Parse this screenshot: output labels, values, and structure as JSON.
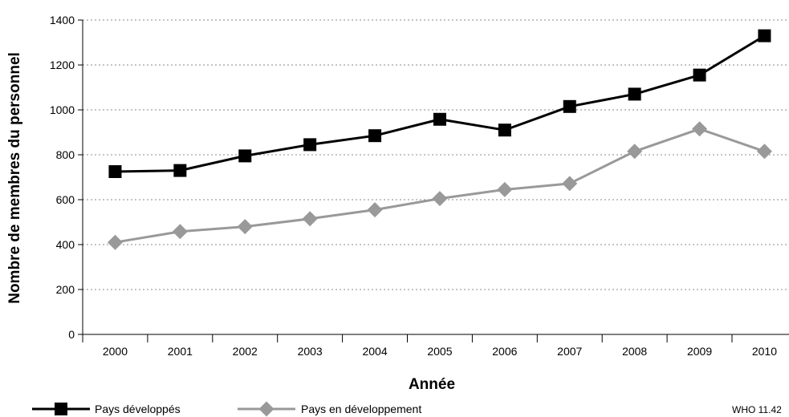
{
  "chart_data": {
    "type": "line",
    "title": "",
    "xlabel": "Année",
    "ylabel": "Nombre de membres du personnel",
    "categories": [
      "2000",
      "2001",
      "2002",
      "2003",
      "2004",
      "2005",
      "2006",
      "2007",
      "2008",
      "2009",
      "2010"
    ],
    "ylim": [
      0,
      1400
    ],
    "yticks": [
      0,
      200,
      400,
      600,
      800,
      1000,
      1200,
      1400
    ],
    "grid": "horizontal dotted",
    "legend_position": "bottom",
    "series": [
      {
        "name": "Pays développés",
        "color": "#000000",
        "marker": "square",
        "values": [
          725,
          730,
          795,
          845,
          885,
          958,
          910,
          1015,
          1070,
          1155,
          1330
        ]
      },
      {
        "name": "Pays en développement",
        "color": "#999999",
        "marker": "diamond",
        "values": [
          410,
          458,
          480,
          515,
          555,
          605,
          645,
          672,
          815,
          915,
          815
        ]
      }
    ]
  },
  "credit": "WHO 11.42"
}
